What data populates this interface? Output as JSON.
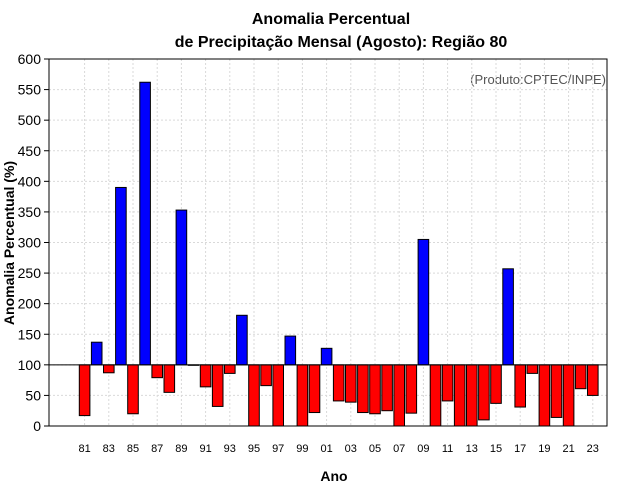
{
  "chart_data": {
    "type": "bar",
    "title": "Anomalia Percentual",
    "subtitle": "de Precipitação Mensal (Agosto): Região 80",
    "xlabel": "Ano",
    "ylabel": "Anomalia Percentual (%)",
    "source": "(Produto:CPTEC/INPE)",
    "ylim": [
      0,
      600
    ],
    "yticks": [
      0,
      50,
      100,
      150,
      200,
      250,
      300,
      350,
      400,
      450,
      500,
      550,
      600
    ],
    "baseline": 100,
    "grid": true,
    "colors": {
      "above": "#0000ff",
      "below": "#ff0000",
      "edge": "#000000",
      "grid": "#d9d9d9"
    },
    "xtick_labels": [
      "81",
      "83",
      "85",
      "87",
      "89",
      "91",
      "93",
      "95",
      "97",
      "99",
      "01",
      "03",
      "05",
      "07",
      "09",
      "11",
      "13",
      "15",
      "17",
      "19",
      "21",
      "23"
    ],
    "categories": [
      "1981",
      "1982",
      "1983",
      "1984",
      "1985",
      "1986",
      "1987",
      "1988",
      "1989",
      "1990",
      "1991",
      "1992",
      "1993",
      "1994",
      "1995",
      "1996",
      "1997",
      "1998",
      "1999",
      "2000",
      "2001",
      "2002",
      "2003",
      "2004",
      "2005",
      "2006",
      "2007",
      "2008",
      "2009",
      "2010",
      "2011",
      "2012",
      "2013",
      "2014",
      "2015",
      "2016",
      "2017",
      "2018",
      "2019",
      "2020",
      "2021",
      "2022",
      "2023"
    ],
    "values": [
      17,
      137,
      87,
      390,
      20,
      562,
      79,
      55,
      353,
      100,
      64,
      32,
      86,
      181,
      0,
      66,
      0,
      147,
      0,
      22,
      127,
      41,
      39,
      22,
      20,
      25,
      0,
      21,
      305,
      0,
      41,
      0,
      0,
      10,
      37,
      257,
      31,
      86,
      0,
      14,
      0,
      61,
      50
    ]
  }
}
